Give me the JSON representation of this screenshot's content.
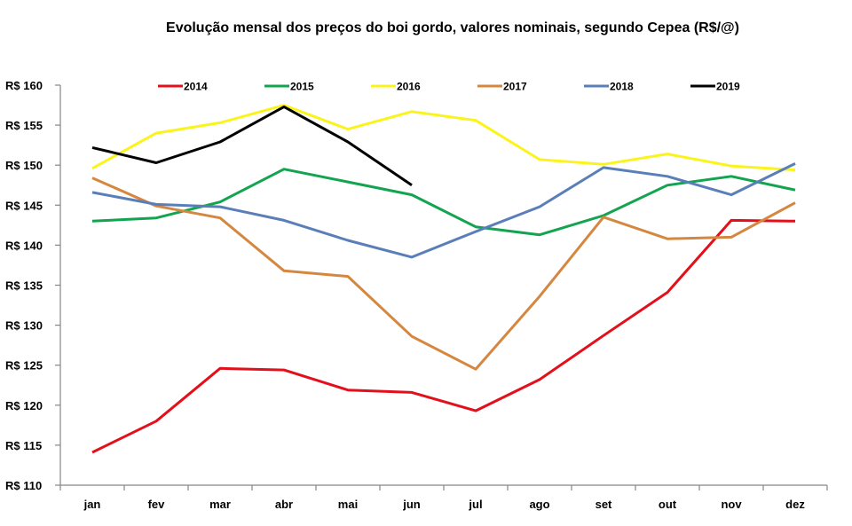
{
  "chart_data": {
    "type": "line",
    "title": "Evolução mensal dos preços do boi gordo, valores nominais, segundo Cepea (R$/@)",
    "xlabel": "",
    "ylabel": "",
    "categories": [
      "jan",
      "fev",
      "mar",
      "abr",
      "mai",
      "jun",
      "jul",
      "ago",
      "set",
      "out",
      "nov",
      "dez"
    ],
    "ylim": [
      110,
      160
    ],
    "yticks": [
      110,
      115,
      120,
      125,
      130,
      135,
      140,
      145,
      150,
      155,
      160
    ],
    "ytick_labels": [
      "R$ 110",
      "R$ 115",
      "R$ 120",
      "R$ 125",
      "R$ 130",
      "R$ 135",
      "R$ 140",
      "R$ 145",
      "R$ 150",
      "R$ 155",
      "R$ 160"
    ],
    "grid": false,
    "legend_position": "top",
    "series": [
      {
        "name": "2014",
        "color": "#e3101b",
        "values": [
          114.1,
          118.0,
          124.6,
          124.4,
          121.9,
          121.6,
          119.3,
          123.2,
          128.7,
          134.1,
          143.1,
          143.0
        ]
      },
      {
        "name": "2015",
        "color": "#12a44f",
        "values": [
          143.0,
          143.4,
          145.4,
          149.5,
          147.9,
          146.3,
          142.3,
          141.3,
          143.7,
          147.5,
          148.6,
          146.9
        ]
      },
      {
        "name": "2016",
        "color": "#fbf41c",
        "values": [
          149.6,
          154.0,
          155.3,
          157.5,
          154.5,
          156.7,
          155.6,
          150.7,
          150.1,
          151.4,
          149.9,
          149.4
        ]
      },
      {
        "name": "2017",
        "color": "#d5873f",
        "values": [
          148.4,
          144.9,
          143.4,
          136.8,
          136.1,
          128.6,
          124.5,
          133.6,
          143.5,
          140.8,
          141.0,
          145.3
        ]
      },
      {
        "name": "2018",
        "color": "#5a7fb8",
        "values": [
          146.6,
          145.1,
          144.8,
          143.1,
          140.6,
          138.5,
          141.7,
          144.8,
          149.7,
          148.6,
          146.3,
          150.2
        ]
      },
      {
        "name": "2019",
        "color": "#000000",
        "values": [
          152.2,
          150.3,
          152.9,
          157.3,
          152.9,
          147.5
        ]
      }
    ]
  }
}
